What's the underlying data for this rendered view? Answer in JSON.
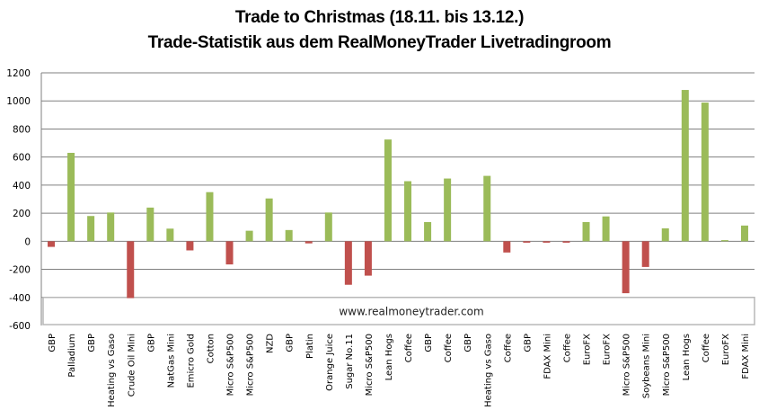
{
  "chart_data": {
    "type": "bar",
    "title": "Trade to Christmas (18.11.  bis 13.12.)",
    "subtitle": "Trade-Statistik aus dem RealMoneyTrader Livetradingroom",
    "xlabel": "",
    "ylabel": "",
    "ylim": [
      -600,
      1200
    ],
    "yticks": [
      -600,
      -400,
      -200,
      0,
      200,
      400,
      600,
      800,
      1000,
      1200
    ],
    "grid": true,
    "legend": "none",
    "annotation": "www.realmoneytrader.com",
    "colors": {
      "positive": "#9bbb59",
      "negative": "#c0504d",
      "grid": "#808080"
    },
    "categories": [
      "GBP",
      "Palladium",
      "GBP",
      "Heating vs Gaso",
      "Crude Oil Mini",
      "GBP",
      "NatGas Mini",
      "Emicro Gold",
      "Cotton",
      "Micro S&P500",
      "Micro S&P500",
      "NZD",
      "GBP",
      "Platin",
      "Orange Juice",
      "Sugar No.11",
      "Micro S&P500",
      "Lean Hogs",
      "Coffee",
      "GBP",
      "Coffee",
      "GBP",
      "Heating vs Gaso",
      "Coffee",
      "GBP",
      "FDAX Mini",
      "Coffee",
      "EuroFX",
      "EuroFX",
      "Micro S&P500",
      "Soybeans Mini",
      "Micro S&P500",
      "Lean Hogs",
      "Coffee",
      "EuroFX",
      "FDAX Mini"
    ],
    "values": [
      -40,
      630,
      180,
      205,
      -405,
      240,
      90,
      -65,
      350,
      -165,
      75,
      305,
      80,
      -15,
      205,
      -310,
      -245,
      725,
      428,
      137,
      447,
      0,
      466,
      -80,
      -10,
      -10,
      -10,
      137,
      177,
      -370,
      -183,
      92,
      1078,
      988,
      8,
      112
    ]
  }
}
